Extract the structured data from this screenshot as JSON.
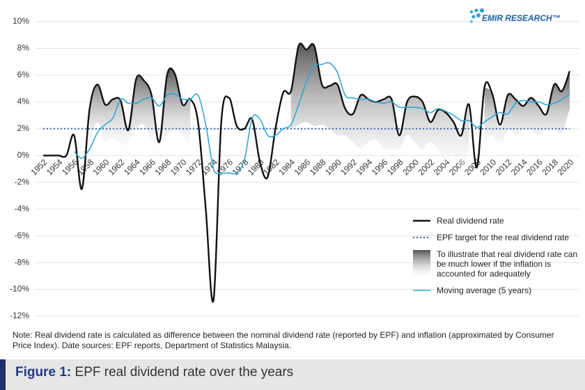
{
  "chart_data": {
    "type": "line",
    "brand": "EMIR RESEARCH™",
    "x": [
      1952,
      1953,
      1954,
      1955,
      1956,
      1957,
      1958,
      1959,
      1960,
      1961,
      1962,
      1963,
      1964,
      1965,
      1966,
      1967,
      1968,
      1969,
      1970,
      1971,
      1972,
      1973,
      1974,
      1975,
      1976,
      1977,
      1978,
      1979,
      1980,
      1981,
      1982,
      1983,
      1984,
      1985,
      1986,
      1987,
      1988,
      1989,
      1990,
      1991,
      1992,
      1993,
      1994,
      1995,
      1996,
      1997,
      1998,
      1999,
      2000,
      2001,
      2002,
      2003,
      2004,
      2005,
      2006,
      2007,
      2008,
      2009,
      2010,
      2011,
      2012,
      2013,
      2014,
      2015,
      2016,
      2017,
      2018,
      2019,
      2020
    ],
    "series": [
      {
        "name": "Real dividend rate",
        "color": "#111111",
        "values": [
          0,
          0,
          0,
          0,
          1.5,
          -2.5,
          3.5,
          5.3,
          3.8,
          4.2,
          4.1,
          1.9,
          5.7,
          5.6,
          4.5,
          1.0,
          6.0,
          6.1,
          3.8,
          4.2,
          2.5,
          -4.0,
          -10.8,
          2.5,
          4.3,
          2.2,
          2.0,
          2.7,
          -0.5,
          -1.6,
          2.0,
          4.7,
          4.8,
          8.2,
          7.9,
          8.2,
          5.3,
          5.2,
          5.3,
          3.5,
          3.1,
          4.5,
          4.2,
          4.0,
          4.2,
          4.2,
          1.5,
          4.0,
          4.4,
          4.0,
          2.5,
          3.4,
          3.2,
          2.5,
          1.5,
          3.8,
          -0.9,
          5.1,
          4.6,
          2.3,
          4.5,
          4.2,
          3.7,
          4.3,
          3.7,
          3.1,
          5.3,
          4.8,
          6.3
        ]
      },
      {
        "name": "To illustrate that real dividend rate can be much lower if the inflation is accounted for adequately",
        "type": "area",
        "color": "#555555",
        "values": [
          null,
          null,
          null,
          null,
          null,
          null,
          1.0,
          2.5,
          1.0,
          1.3,
          0.6,
          1.0,
          2.0,
          2.3,
          1.0,
          0.5,
          1.5,
          2.0,
          1.5,
          0.5,
          null,
          null,
          null,
          null,
          null,
          null,
          null,
          null,
          null,
          null,
          null,
          null,
          2.0,
          2.3,
          2.5,
          2.2,
          2.3,
          2.0,
          1.5,
          1.5,
          1.0,
          0.5,
          1.0,
          1.2,
          0.5,
          0.5,
          0.5,
          1.5,
          1.0,
          0.5,
          1.0,
          0.5,
          -0.5,
          0,
          -1.0,
          0.5,
          null,
          1.0,
          1.5,
          0.5,
          2.0,
          1.5,
          2.0,
          2.0,
          1.5,
          2.0,
          2.0,
          1.7,
          3.5
        ]
      },
      {
        "name": "Moving average (5 years)",
        "color": "#2ba8d8",
        "values": [
          null,
          null,
          null,
          null,
          0.3,
          -0.2,
          0.5,
          1.7,
          2.3,
          2.8,
          4.2,
          3.9,
          3.9,
          4.2,
          4.3,
          3.7,
          4.5,
          4.6,
          4.2,
          4.2,
          4.5,
          2.3,
          -1.0,
          -1.3,
          -1.3,
          -1.3,
          -0.3,
          2.8,
          2.7,
          1.5,
          1.5,
          2.0,
          2.3,
          3.8,
          5.5,
          6.7,
          6.8,
          6.9,
          6.2,
          4.5,
          4.3,
          4.2,
          4.2,
          4.0,
          3.9,
          4.0,
          3.6,
          3.6,
          3.6,
          3.5,
          3.2,
          3.5,
          3.3,
          3.0,
          2.6,
          2.6,
          2.1,
          2.5,
          2.9,
          3.2,
          3.1,
          3.9,
          4.1,
          4.0,
          4.0,
          3.8,
          3.9,
          4.2,
          4.6
        ]
      }
    ],
    "reference_line": {
      "name": "EPF target for the real dividend rate",
      "value": 2,
      "color": "#3a6fc4"
    },
    "xlim": [
      1952,
      2020
    ],
    "xticks": [
      1952,
      1954,
      1956,
      1958,
      1960,
      1962,
      1964,
      1966,
      1968,
      1970,
      1972,
      1974,
      1976,
      1978,
      1980,
      1982,
      1984,
      1986,
      1988,
      1990,
      1992,
      1994,
      1996,
      1998,
      2000,
      2002,
      2004,
      2006,
      2008,
      2010,
      2012,
      2014,
      2016,
      2018,
      2020
    ],
    "ylim": [
      -12,
      10
    ],
    "yticks": [
      {
        "value": 10,
        "label": "10%"
      },
      {
        "value": 8,
        "label": "8%"
      },
      {
        "value": 6,
        "label": "6%"
      },
      {
        "value": 4,
        "label": "4%"
      },
      {
        "value": 2,
        "label": "2%"
      },
      {
        "value": 0,
        "label": "0%"
      },
      {
        "value": -2,
        "label": "-2%"
      },
      {
        "value": -4,
        "label": "-4%"
      },
      {
        "value": -6,
        "label": "-6%"
      },
      {
        "value": -8,
        "label": "-8%"
      },
      {
        "value": -10,
        "label": "-10%"
      },
      {
        "value": -12,
        "label": "-12%"
      }
    ],
    "grid": true,
    "note": "Note: Real dividend rate is calculated as difference between the nominal dividend rate (reported by EPF) and inflation (approximated by Consumer Price Index). Date sources: EPF reports, Department of Statistics Malaysia.",
    "figure_label": "Figure 1:",
    "caption": "EPF real dividend rate over the years"
  }
}
